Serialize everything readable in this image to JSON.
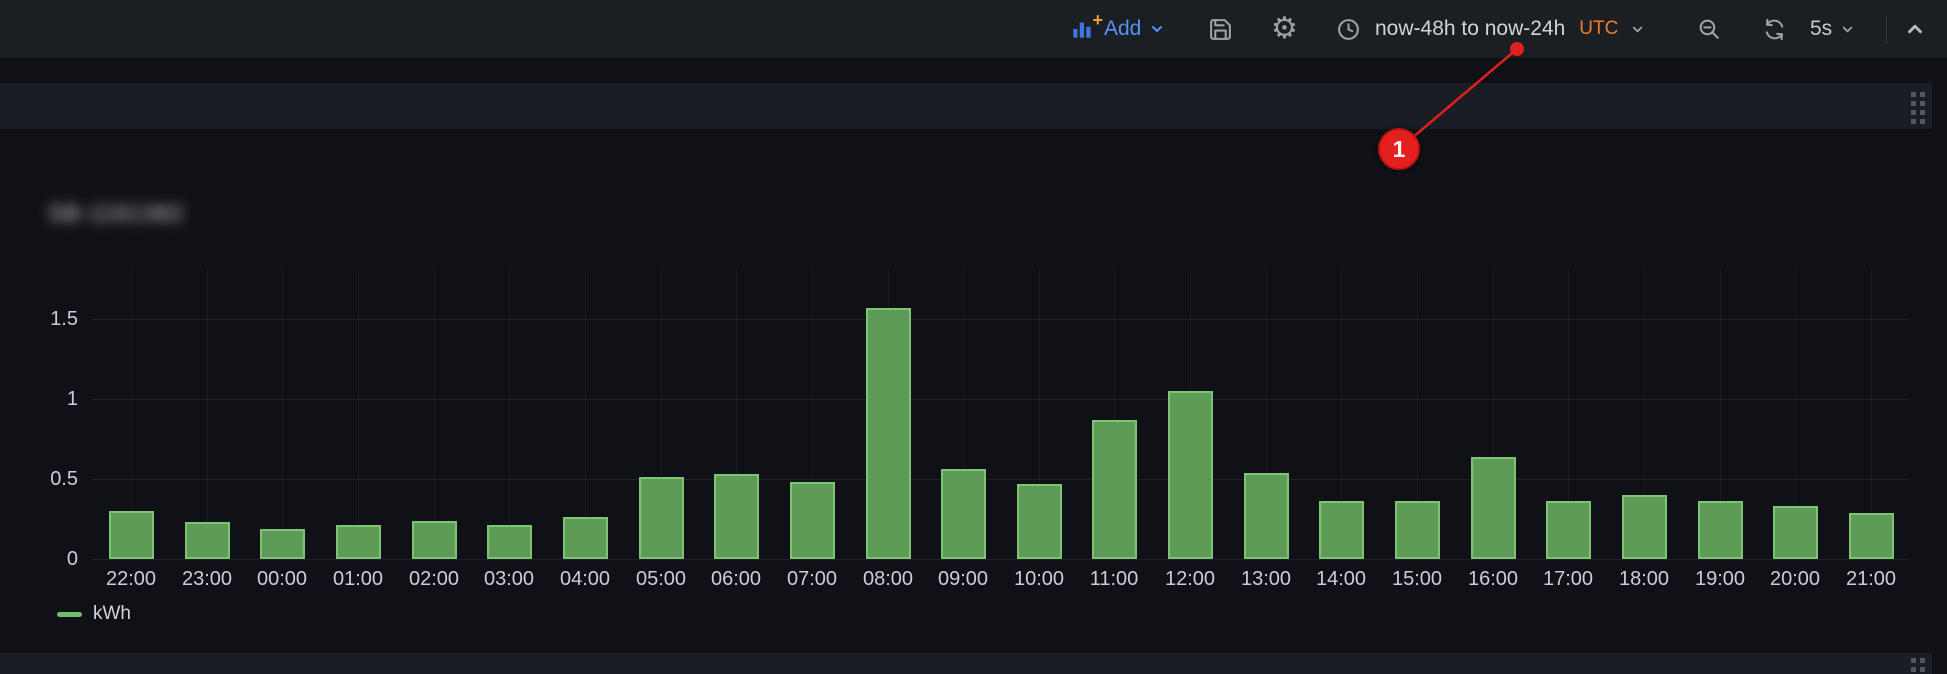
{
  "toolbar": {
    "add": {
      "label": "Add"
    },
    "time_picker": {
      "range": "now-48h to now-24h",
      "timezone": "UTC"
    },
    "refresh": {
      "interval": "5s"
    },
    "icons": {
      "add": "bar-chart-plus-icon",
      "save": "save-icon",
      "settings": "gear-icon",
      "time": "clock-icon",
      "zoom_out": "magnifier-minus-icon",
      "refresh": "refresh-icon",
      "collapse": "chevron-up-icon"
    }
  },
  "panel": {
    "title_blurred": true,
    "title_text_approx": "SB-1161382"
  },
  "annotation": {
    "label": "1",
    "color": "#e02020"
  },
  "chart_data": {
    "type": "bar",
    "title": "",
    "xlabel": "",
    "ylabel": "",
    "categories": [
      "22:00",
      "23:00",
      "00:00",
      "01:00",
      "02:00",
      "03:00",
      "04:00",
      "05:00",
      "06:00",
      "07:00",
      "08:00",
      "09:00",
      "10:00",
      "11:00",
      "12:00",
      "13:00",
      "14:00",
      "15:00",
      "16:00",
      "17:00",
      "18:00",
      "19:00",
      "20:00",
      "21:00"
    ],
    "series": [
      {
        "name": "kWh",
        "color": "#73bf69",
        "values": [
          0.3,
          0.23,
          0.19,
          0.21,
          0.24,
          0.21,
          0.26,
          0.51,
          0.53,
          0.48,
          1.57,
          0.56,
          0.47,
          0.87,
          1.05,
          0.54,
          0.36,
          0.36,
          0.64,
          0.36,
          0.4,
          0.36,
          0.33,
          0.29
        ]
      }
    ],
    "yticks": [
      0,
      0.5,
      1,
      1.5
    ],
    "ylim": [
      0,
      1.8
    ],
    "grid": true,
    "legend_position": "bottom-left",
    "unit": "kWh"
  }
}
